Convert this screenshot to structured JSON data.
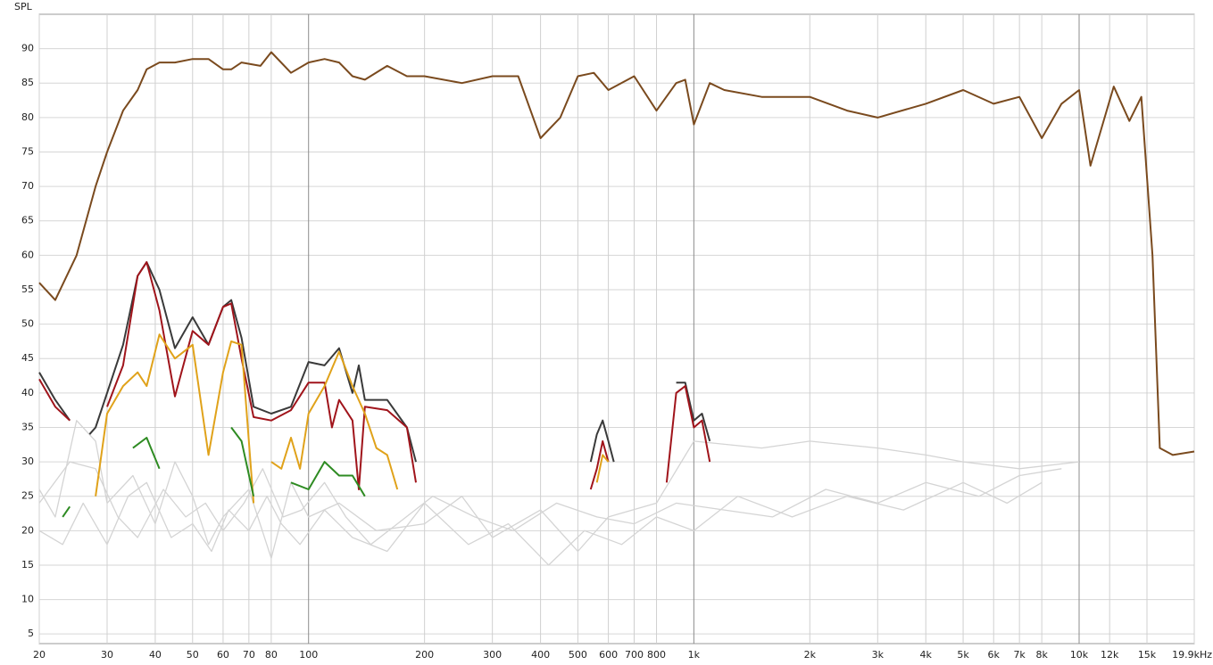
{
  "chart_data": {
    "type": "line",
    "y_label": "SPL",
    "log_x": true,
    "grid": true,
    "xlim": [
      20,
      19900
    ],
    "ylim": [
      3.6,
      95
    ],
    "yticks": [
      5,
      10,
      15,
      20,
      25,
      30,
      35,
      40,
      45,
      50,
      55,
      60,
      65,
      70,
      75,
      80,
      85,
      90
    ],
    "xticks": [
      20,
      30,
      40,
      50,
      60,
      70,
      80,
      100,
      200,
      300,
      400,
      500,
      600,
      700,
      800,
      {
        "value": 1000,
        "label": "1k"
      },
      {
        "value": 2000,
        "label": "2k"
      },
      {
        "value": 3000,
        "label": "3k"
      },
      {
        "value": 4000,
        "label": "4k"
      },
      {
        "value": 5000,
        "label": "5k"
      },
      {
        "value": 6000,
        "label": "6k"
      },
      {
        "value": 7000,
        "label": "7k"
      },
      {
        "value": 8000,
        "label": "8k"
      },
      {
        "value": 10000,
        "label": "10k"
      },
      {
        "value": 12000,
        "label": "12k"
      },
      {
        "value": 15000,
        "label": "15k"
      },
      {
        "value": 19900,
        "label": "19.9kHz"
      }
    ],
    "series": [
      {
        "color": "#d4d4d4",
        "x": [
          20,
          22,
          25,
          28,
          30,
          35,
          40,
          45,
          50,
          55,
          60,
          70,
          80,
          90,
          100,
          120,
          150,
          200,
          250,
          300,
          400,
          500,
          600,
          800,
          1000,
          1500,
          2000,
          3000,
          4000,
          5000,
          7000,
          10000
        ],
        "values": [
          26,
          22,
          36,
          33,
          24,
          28,
          21,
          30,
          25,
          18,
          22,
          26,
          16,
          27,
          22,
          24,
          20,
          21,
          25,
          19,
          23,
          17,
          22,
          24,
          33,
          32,
          33,
          32,
          31,
          30,
          29,
          30
        ]
      },
      {
        "color": "#d4d4d4",
        "x": [
          20,
          23,
          26,
          30,
          34,
          38,
          44,
          50,
          56,
          62,
          70,
          78,
          85,
          95,
          110,
          130,
          160,
          200,
          260,
          330,
          420,
          520,
          650,
          800,
          1000,
          1300,
          1800,
          2500,
          3500,
          5000,
          6500,
          8000
        ],
        "values": [
          20,
          18,
          24,
          18,
          25,
          27,
          19,
          21,
          17,
          23,
          20,
          25,
          21,
          18,
          23,
          19,
          17,
          24,
          18,
          21,
          15,
          20,
          18,
          22,
          20,
          25,
          22,
          25,
          23,
          27,
          24,
          27
        ]
      },
      {
        "color": "#d4d4d4",
        "x": [
          20,
          24,
          28,
          32,
          36,
          42,
          48,
          54,
          60,
          68,
          76,
          86,
          96,
          110,
          125,
          145,
          170,
          210,
          270,
          340,
          440,
          560,
          700,
          900,
          1200,
          1600,
          2200,
          3000,
          4000,
          5500,
          7000,
          9000
        ],
        "values": [
          24,
          30,
          29,
          22,
          19,
          26,
          22,
          24,
          20,
          24,
          29,
          22,
          23,
          27,
          22,
          18,
          21,
          25,
          22,
          20,
          24,
          22,
          21,
          24,
          23,
          22,
          26,
          24,
          27,
          25,
          28,
          29
        ]
      },
      {
        "color": "#7a4a1e",
        "x": [
          20,
          22,
          25,
          28,
          30,
          33,
          36,
          38,
          41,
          45,
          50,
          55,
          60,
          63,
          67,
          75,
          80,
          90,
          100,
          110,
          120,
          130,
          140,
          160,
          180,
          200,
          250,
          300,
          350,
          400,
          450,
          500,
          550,
          600,
          700,
          800,
          900,
          950,
          1000,
          1100,
          1200,
          1500,
          2000,
          2500,
          3000,
          4000,
          5000,
          6000,
          7000,
          8000,
          9000,
          10000,
          10700,
          12300,
          13500,
          14500,
          15500,
          16200,
          17500,
          19900
        ],
        "values": [
          56,
          53.5,
          60,
          70,
          75,
          81,
          84,
          87,
          88,
          88,
          88.5,
          88.5,
          87,
          87,
          88,
          87.5,
          89.5,
          86.5,
          88,
          88.5,
          88,
          86,
          85.5,
          87.5,
          86,
          86,
          85,
          86,
          86,
          77,
          80,
          86,
          86.5,
          84,
          86,
          81,
          85,
          85.5,
          79,
          85,
          84,
          83,
          83,
          81,
          80,
          82,
          84,
          82,
          83,
          77,
          82,
          84,
          73,
          84.5,
          79.5,
          83,
          60,
          32,
          31,
          31.5
        ]
      },
      {
        "color": "#3a3a3a",
        "x": [
          20,
          22,
          24,
          25,
          27,
          28,
          30,
          33,
          36,
          38,
          41,
          45,
          50,
          55,
          60,
          63,
          67,
          72,
          80,
          90,
          100,
          110,
          120,
          130,
          135,
          140,
          160,
          180,
          190,
          200,
          540,
          560,
          580,
          600,
          620,
          850,
          900,
          950,
          1000,
          1050,
          1100
        ],
        "values": [
          43,
          39,
          36,
          null,
          34,
          35,
          40,
          47,
          57,
          59,
          55,
          46.5,
          51,
          47,
          52.5,
          53.5,
          48,
          38,
          37,
          38,
          44.5,
          44,
          46.5,
          40,
          44,
          39,
          39,
          35,
          30,
          null,
          30,
          34,
          36,
          33,
          30,
          null,
          41.5,
          41.5,
          36,
          37,
          33
        ]
      },
      {
        "color": "#a0141b",
        "x": [
          20,
          22,
          24,
          28,
          30,
          33,
          36,
          38,
          41,
          45,
          50,
          55,
          60,
          63,
          67,
          72,
          80,
          90,
          100,
          110,
          115,
          120,
          130,
          135,
          140,
          160,
          180,
          190,
          200,
          540,
          560,
          580,
          600,
          620,
          850,
          900,
          950,
          1000,
          1050,
          1100
        ],
        "values": [
          42,
          38,
          36,
          null,
          38,
          44,
          57,
          59,
          52,
          39.5,
          49,
          47,
          52.5,
          53,
          45,
          36.5,
          36,
          37.5,
          41.5,
          41.5,
          35,
          39,
          36,
          26,
          38,
          37.5,
          35,
          27,
          null,
          26,
          29,
          33,
          30,
          null,
          27,
          40,
          41,
          35,
          36,
          30
        ]
      },
      {
        "color": "#e0a21a",
        "x": [
          28,
          30,
          33,
          36,
          38,
          41,
          45,
          50,
          55,
          60,
          63,
          67,
          72,
          76,
          80,
          85,
          90,
          95,
          100,
          110,
          120,
          130,
          140,
          150,
          160,
          170,
          540,
          560,
          580,
          600
        ],
        "values": [
          25,
          37,
          41,
          43,
          41,
          48.5,
          45,
          47,
          31,
          43,
          47.5,
          47,
          24,
          null,
          30,
          29,
          33.5,
          29,
          37,
          41,
          46,
          41,
          37,
          32,
          31,
          26,
          null,
          27,
          31,
          30
        ]
      },
      {
        "color": "#2e8b22",
        "x": [
          23,
          24,
          28,
          35,
          38,
          41,
          55,
          63,
          67,
          72,
          85,
          90,
          100,
          110,
          120,
          130,
          140
        ],
        "values": [
          22,
          23.5,
          null,
          32,
          33.5,
          29,
          null,
          35,
          33,
          25,
          null,
          27,
          26,
          30,
          28,
          28,
          25
        ]
      }
    ]
  }
}
